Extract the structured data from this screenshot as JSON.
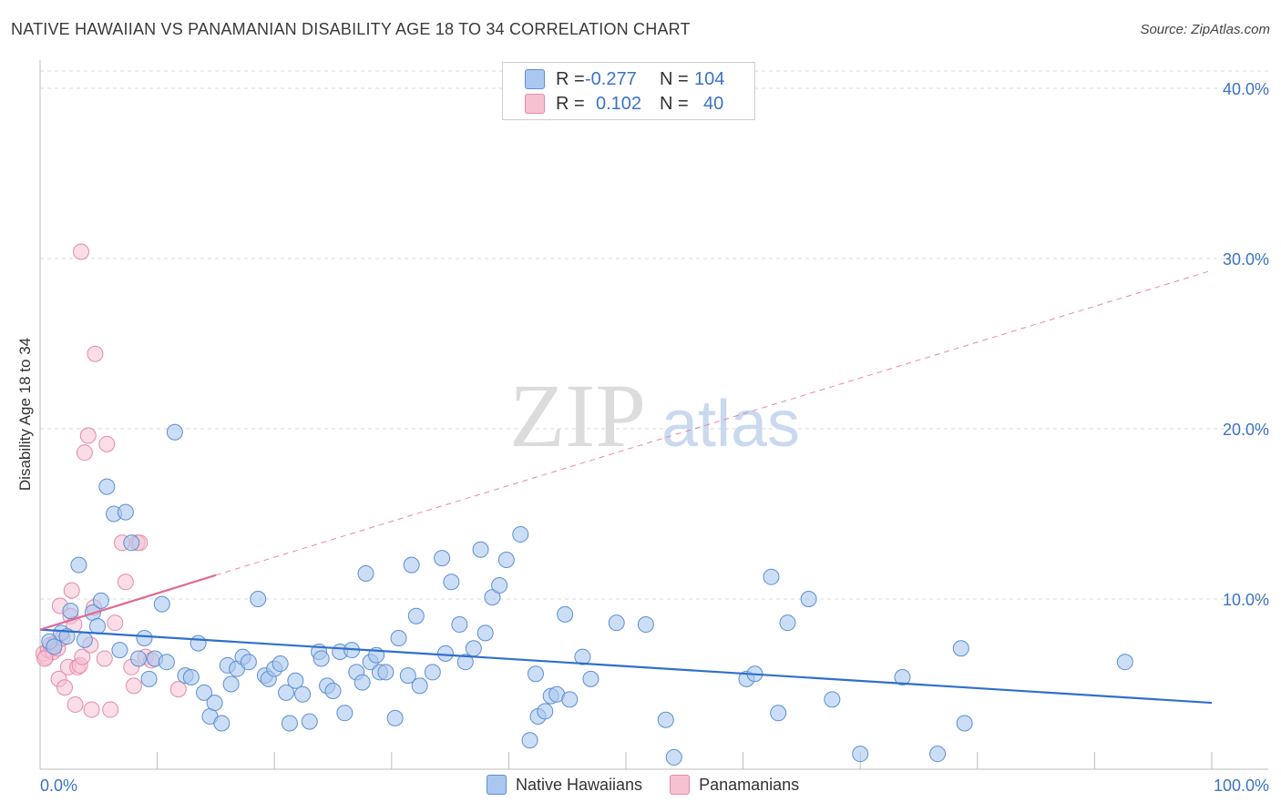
{
  "title": "NATIVE HAWAIIAN VS PANAMANIAN DISABILITY AGE 18 TO 34 CORRELATION CHART",
  "source": "Source: ZipAtlas.com",
  "watermark": {
    "zip": "ZIP",
    "atlas": "atlas"
  },
  "legend": {
    "rows": [
      {
        "r_label": "R =",
        "r_value": "-0.277",
        "n_label": "N =",
        "n_value": "104"
      },
      {
        "r_label": "R =",
        "r_value": "0.102",
        "n_label": "N =",
        "n_value": "40"
      }
    ]
  },
  "bottom_legend": [
    "Native Hawaiians",
    "Panamanians"
  ],
  "colors": {
    "blue_fill": "#aac8ef",
    "blue_stroke": "#5b8fd6",
    "blue_line": "#2f6fcd",
    "pink_fill": "#f6c1d1",
    "pink_stroke": "#e58aa8",
    "pink_line": "#e06a93",
    "tick_text": "#3a73c6",
    "grid": "#d8d8d8"
  },
  "chart_data": {
    "type": "scatter",
    "title": "NATIVE HAWAIIAN VS PANAMANIAN DISABILITY AGE 18 TO 34 CORRELATION CHART",
    "xlabel": "",
    "ylabel": "Disability Age 18 to 34",
    "xlim": [
      0,
      100
    ],
    "ylim": [
      0,
      40
    ],
    "x_tick_labels": [
      "0.0%",
      "100.0%"
    ],
    "y_ticks": [
      10,
      20,
      30,
      40
    ],
    "y_tick_labels": [
      "10.0%",
      "20.0%",
      "30.0%",
      "40.0%"
    ],
    "series": [
      {
        "name": "Native Hawaiians",
        "r": -0.277,
        "n": 104,
        "trend": {
          "x": [
            0,
            100
          ],
          "y": [
            8.2,
            3.9
          ]
        },
        "points": [
          [
            0.8,
            7.5
          ],
          [
            1.2,
            7.2
          ],
          [
            1.8,
            8.0
          ],
          [
            2.3,
            7.8
          ],
          [
            2.6,
            9.3
          ],
          [
            3.3,
            12.0
          ],
          [
            3.8,
            7.6
          ],
          [
            4.5,
            9.2
          ],
          [
            4.9,
            8.4
          ],
          [
            5.2,
            9.9
          ],
          [
            5.7,
            16.6
          ],
          [
            6.3,
            15.0
          ],
          [
            6.8,
            7.0
          ],
          [
            7.3,
            15.1
          ],
          [
            7.8,
            13.3
          ],
          [
            8.4,
            6.5
          ],
          [
            8.9,
            7.7
          ],
          [
            9.3,
            5.3
          ],
          [
            9.8,
            6.5
          ],
          [
            10.4,
            9.7
          ],
          [
            10.8,
            6.3
          ],
          [
            11.5,
            19.8
          ],
          [
            12.4,
            5.5
          ],
          [
            12.9,
            5.4
          ],
          [
            13.5,
            7.4
          ],
          [
            14.0,
            4.5
          ],
          [
            14.5,
            3.1
          ],
          [
            14.9,
            3.9
          ],
          [
            15.5,
            2.7
          ],
          [
            16.0,
            6.1
          ],
          [
            16.3,
            5.0
          ],
          [
            16.8,
            5.9
          ],
          [
            17.3,
            6.6
          ],
          [
            17.8,
            6.3
          ],
          [
            18.6,
            10.0
          ],
          [
            19.2,
            5.5
          ],
          [
            19.5,
            5.3
          ],
          [
            20.0,
            5.9
          ],
          [
            20.5,
            6.2
          ],
          [
            21.0,
            4.5
          ],
          [
            21.3,
            2.7
          ],
          [
            21.8,
            5.2
          ],
          [
            22.4,
            4.4
          ],
          [
            23.0,
            2.8
          ],
          [
            23.8,
            6.9
          ],
          [
            24.0,
            6.5
          ],
          [
            24.5,
            4.9
          ],
          [
            25.0,
            4.6
          ],
          [
            25.6,
            6.9
          ],
          [
            26.0,
            3.3
          ],
          [
            26.6,
            7.0
          ],
          [
            27.0,
            5.7
          ],
          [
            27.5,
            5.1
          ],
          [
            27.8,
            11.5
          ],
          [
            28.2,
            6.3
          ],
          [
            28.7,
            6.7
          ],
          [
            29.0,
            5.7
          ],
          [
            29.5,
            5.7
          ],
          [
            30.3,
            3.0
          ],
          [
            30.6,
            7.7
          ],
          [
            31.4,
            5.5
          ],
          [
            31.7,
            12.0
          ],
          [
            32.1,
            9.0
          ],
          [
            32.4,
            4.9
          ],
          [
            33.5,
            5.7
          ],
          [
            34.3,
            12.4
          ],
          [
            34.6,
            6.8
          ],
          [
            35.1,
            11.0
          ],
          [
            35.8,
            8.5
          ],
          [
            36.3,
            6.3
          ],
          [
            37.0,
            7.1
          ],
          [
            37.6,
            12.9
          ],
          [
            38.0,
            8.0
          ],
          [
            38.6,
            10.1
          ],
          [
            39.2,
            10.8
          ],
          [
            39.8,
            12.3
          ],
          [
            41.0,
            13.8
          ],
          [
            41.8,
            1.7
          ],
          [
            42.3,
            5.6
          ],
          [
            42.5,
            3.1
          ],
          [
            43.1,
            3.4
          ],
          [
            43.6,
            4.3
          ],
          [
            44.1,
            4.4
          ],
          [
            44.8,
            9.1
          ],
          [
            45.2,
            4.1
          ],
          [
            46.3,
            6.6
          ],
          [
            47.0,
            5.3
          ],
          [
            49.2,
            8.6
          ],
          [
            51.7,
            8.5
          ],
          [
            53.4,
            2.9
          ],
          [
            54.1,
            0.7
          ],
          [
            60.3,
            5.3
          ],
          [
            61.0,
            5.6
          ],
          [
            62.4,
            11.3
          ],
          [
            63.0,
            3.3
          ],
          [
            63.8,
            8.6
          ],
          [
            65.6,
            10.0
          ],
          [
            67.6,
            4.1
          ],
          [
            70.0,
            0.9
          ],
          [
            73.6,
            5.4
          ],
          [
            76.6,
            0.9
          ],
          [
            78.9,
            2.7
          ],
          [
            78.6,
            7.1
          ],
          [
            92.6,
            6.3
          ]
        ]
      },
      {
        "name": "Panamanians",
        "r": 0.102,
        "n": 40,
        "trend": {
          "x": [
            0,
            15
          ],
          "y": [
            8.2,
            11.4
          ]
        },
        "trend_dashed": {
          "x": [
            15,
            100
          ],
          "y": [
            11.4,
            29.3
          ]
        },
        "points": [
          [
            0.3,
            6.8
          ],
          [
            0.5,
            6.6
          ],
          [
            0.7,
            7.0
          ],
          [
            0.9,
            7.3
          ],
          [
            1.1,
            6.9
          ],
          [
            1.3,
            7.4
          ],
          [
            1.5,
            7.1
          ],
          [
            1.6,
            5.3
          ],
          [
            1.7,
            9.6
          ],
          [
            1.9,
            7.7
          ],
          [
            2.1,
            4.8
          ],
          [
            2.4,
            6.0
          ],
          [
            2.6,
            9.0
          ],
          [
            2.7,
            10.5
          ],
          [
            2.9,
            8.5
          ],
          [
            3.0,
            3.8
          ],
          [
            3.2,
            6.0
          ],
          [
            3.4,
            6.1
          ],
          [
            3.5,
            30.4
          ],
          [
            3.6,
            6.6
          ],
          [
            3.8,
            18.6
          ],
          [
            4.1,
            19.6
          ],
          [
            4.3,
            7.3
          ],
          [
            4.4,
            3.5
          ],
          [
            4.6,
            9.5
          ],
          [
            4.7,
            24.4
          ],
          [
            5.5,
            6.5
          ],
          [
            5.7,
            19.1
          ],
          [
            6.0,
            3.5
          ],
          [
            6.4,
            8.6
          ],
          [
            7.0,
            13.3
          ],
          [
            7.3,
            11.0
          ],
          [
            7.8,
            6.0
          ],
          [
            8.0,
            4.9
          ],
          [
            8.3,
            13.3
          ],
          [
            8.5,
            13.3
          ],
          [
            9.0,
            6.6
          ],
          [
            9.5,
            6.4
          ],
          [
            11.8,
            4.7
          ],
          [
            0.4,
            6.5
          ]
        ]
      }
    ]
  }
}
